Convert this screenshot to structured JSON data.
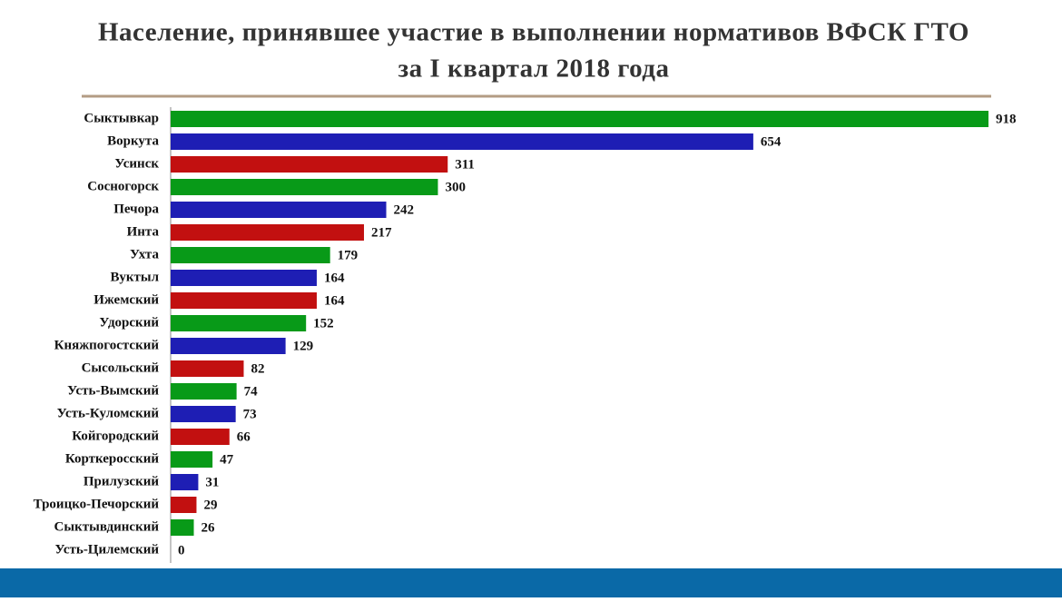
{
  "chart_data": {
    "type": "hbar",
    "title": [
      "Население, принявшее участие в выполнении нормативов ВФСК ГТО",
      "за I квартал 2018 года"
    ],
    "categories": [
      "Сыктывкар",
      "Воркута",
      "Усинск",
      "Сосногорск",
      "Печора",
      "Инта",
      "Ухта",
      "Вуктыл",
      "Ижемский",
      "Удорский",
      "Княжпогостский",
      "Сысольский",
      "Усть-Вымский",
      "Усть-Куломский",
      "Койгородский",
      "Корткеросский",
      "Прилузский",
      "Троицко-Печорский",
      "Сыктывдинский",
      "Усть-Цилемский"
    ],
    "values": [
      918,
      654,
      311,
      300,
      242,
      217,
      179,
      164,
      164,
      152,
      129,
      82,
      74,
      73,
      66,
      47,
      31,
      29,
      26,
      0
    ],
    "colors": [
      "#089a18",
      "#1e1eb4",
      "#c21010",
      "#089a18",
      "#1e1eb4",
      "#c21010",
      "#089a18",
      "#1e1eb4",
      "#c21010",
      "#089a18",
      "#1e1eb4",
      "#c21010",
      "#089a18",
      "#1e1eb4",
      "#c21010",
      "#089a18",
      "#1e1eb4",
      "#c21010",
      "#089a18",
      "#1e1eb4"
    ]
  }
}
